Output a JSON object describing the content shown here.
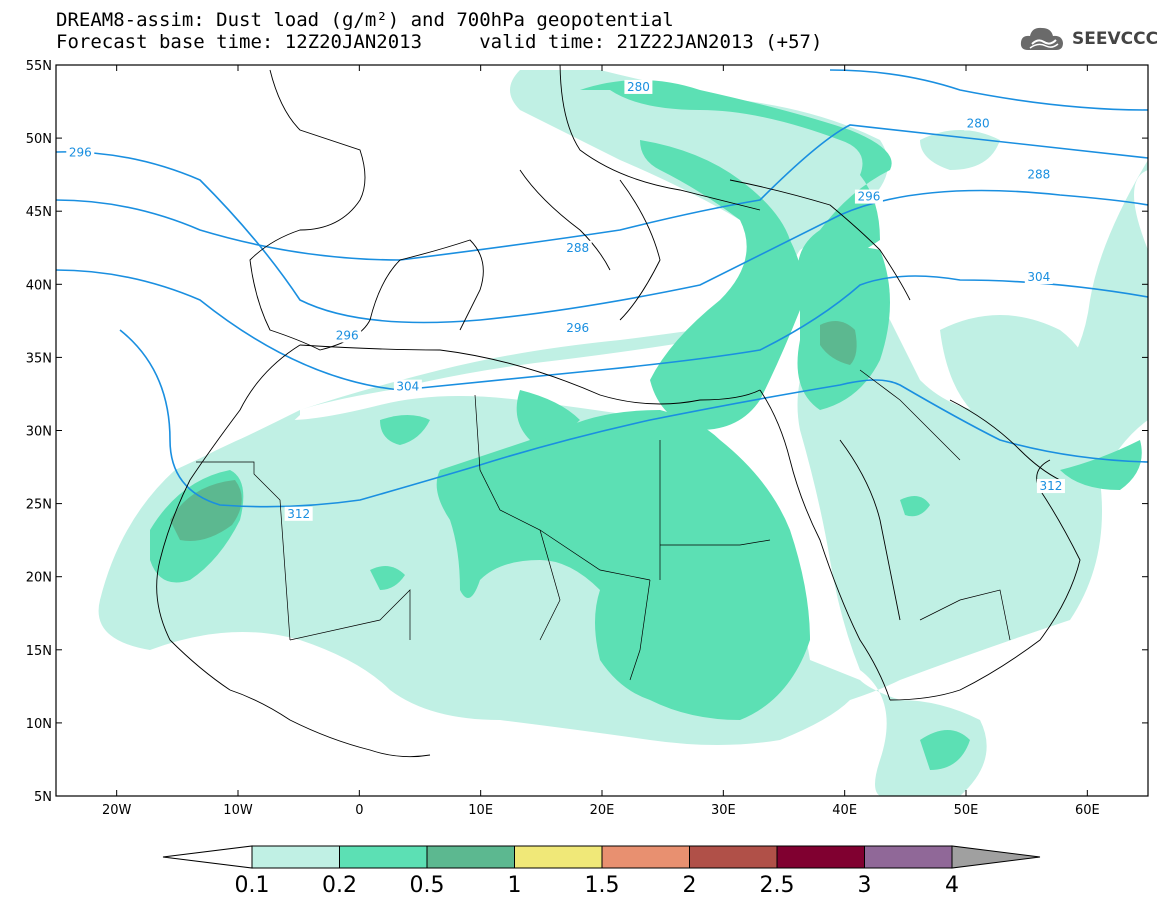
{
  "title": {
    "line1": "DREAM8-assim: Dust load (g/m²) and 700hPa geopotential",
    "line2": "Forecast base time: 12Z20JAN2013     valid time: 21Z22JAN2013 (+57)"
  },
  "logo": {
    "text": "SEEVCCC",
    "icon": "cloud-icon"
  },
  "map": {
    "lon_range": [
      -25,
      65
    ],
    "lat_range": [
      5,
      55
    ],
    "lon_ticks": [
      "20W",
      "10W",
      "0",
      "10E",
      "20E",
      "30E",
      "40E",
      "50E",
      "60E"
    ],
    "lat_ticks": [
      "55N",
      "50N",
      "45N",
      "40N",
      "35N",
      "30N",
      "25N",
      "20N",
      "15N",
      "10N",
      "5N"
    ],
    "contour_color": "#1a8fe0",
    "contours": [
      {
        "label": "280",
        "label_pos": [
          [
            23,
            53.5
          ],
          [
            51,
            51
          ]
        ]
      },
      {
        "label": "288",
        "label_pos": [
          [
            18,
            42.5
          ],
          [
            56,
            47.5
          ]
        ]
      },
      {
        "label": "296",
        "label_pos": [
          [
            -23,
            49
          ],
          [
            -1,
            36.5
          ],
          [
            18,
            37
          ],
          [
            42,
            46
          ]
        ]
      },
      {
        "label": "304",
        "label_pos": [
          [
            4,
            33
          ],
          [
            56,
            40.5
          ]
        ]
      },
      {
        "label": "312",
        "label_pos": [
          [
            -5,
            24.3
          ],
          [
            57,
            26.2
          ]
        ]
      }
    ]
  },
  "colorbar": {
    "colors": [
      "#c0f0e4",
      "#5ce0b4",
      "#5cb890",
      "#f0e878",
      "#e89070",
      "#b05048",
      "#800030",
      "#906898"
    ],
    "end_low": "#ffffff",
    "end_high": "#a0a0a0",
    "labels": [
      "0.1",
      "0.2",
      "0.5",
      "1",
      "1.5",
      "2",
      "2.5",
      "3",
      "4"
    ]
  }
}
